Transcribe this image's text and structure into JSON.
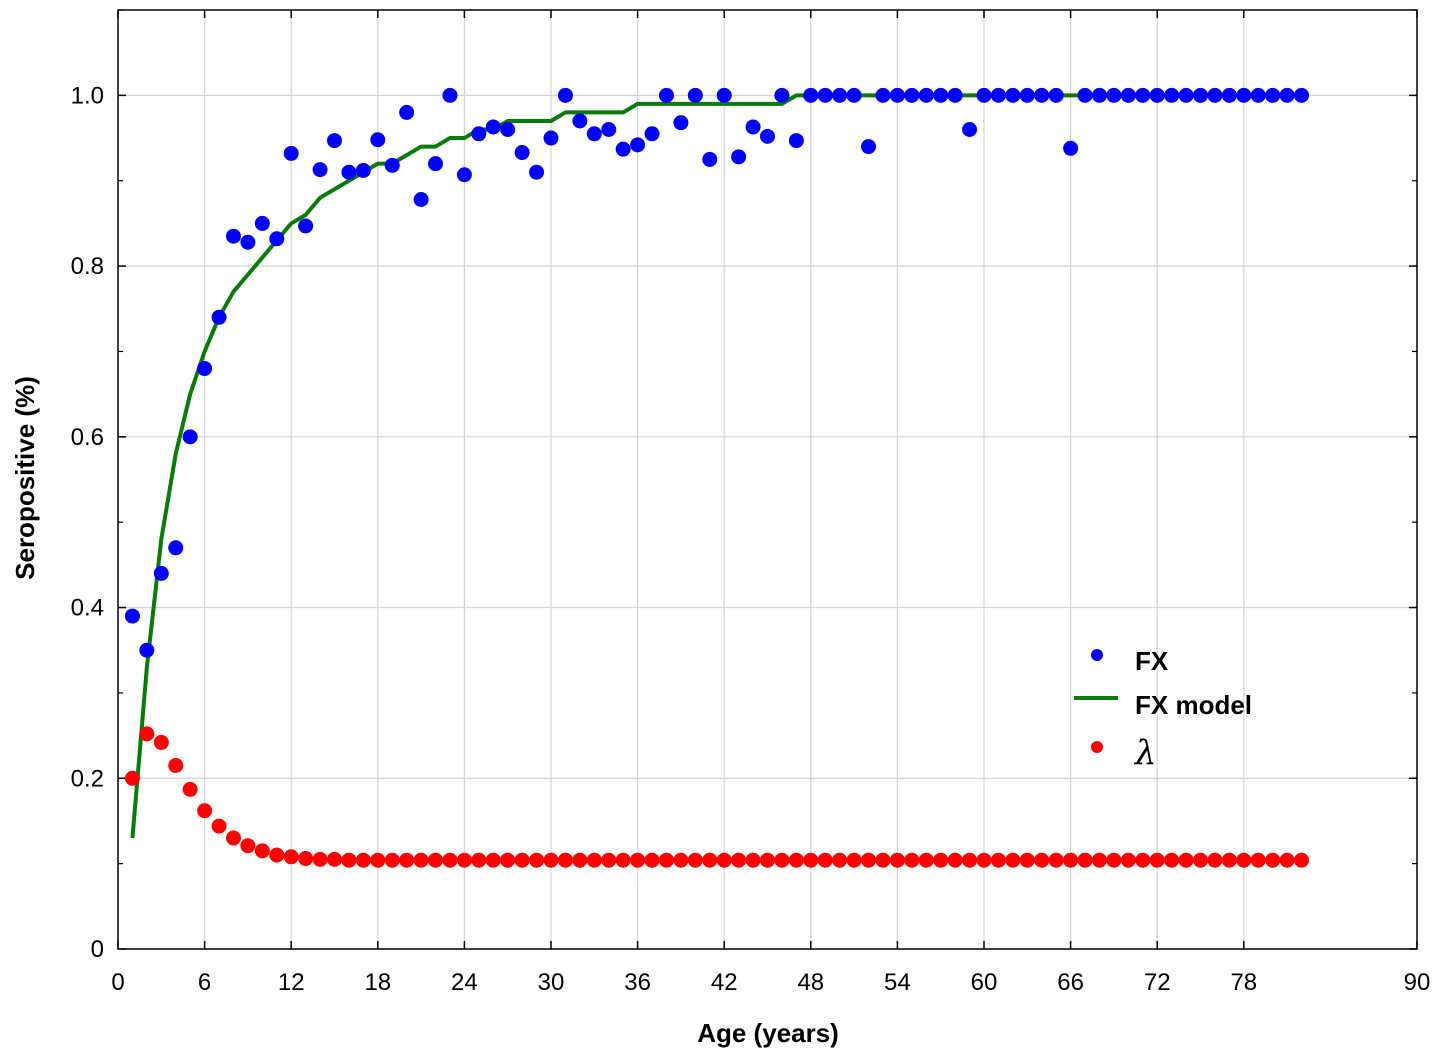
{
  "chart_data": {
    "type": "scatter",
    "title": "",
    "xlabel": "Age (years)",
    "ylabel": "Seropositive (%)",
    "xlim": [
      0,
      90
    ],
    "ylim": [
      0,
      1.1
    ],
    "xticks": [
      0,
      6,
      12,
      18,
      24,
      30,
      36,
      42,
      48,
      54,
      60,
      66,
      72,
      78,
      90
    ],
    "xtick_labels": [
      "0",
      "6",
      "12",
      "18",
      "24",
      "30",
      "36",
      "42",
      "48",
      "54",
      "60",
      "66",
      "72",
      "78",
      "90"
    ],
    "yticks": [
      0,
      0.2,
      0.4,
      0.6,
      0.8,
      1.0
    ],
    "ytick_labels": [
      "0",
      "0.2",
      "0.4",
      "0.6",
      "0.8",
      "1.0"
    ],
    "grid": true,
    "legend_position": "center-right",
    "series": [
      {
        "name": "FX",
        "kind": "scatter",
        "color": "#0000ff",
        "x": [
          1,
          2,
          3,
          4,
          5,
          6,
          7,
          8,
          9,
          10,
          11,
          12,
          13,
          14,
          15,
          16,
          17,
          18,
          19,
          20,
          21,
          22,
          23,
          24,
          25,
          26,
          27,
          28,
          29,
          30,
          31,
          32,
          33,
          34,
          35,
          36,
          37,
          38,
          39,
          40,
          41,
          42,
          43,
          44,
          45,
          46,
          47,
          48,
          49,
          50,
          51,
          52,
          53,
          54,
          55,
          56,
          57,
          58,
          59,
          60,
          61,
          62,
          63,
          64,
          65,
          66,
          67,
          68,
          69,
          70,
          71,
          72,
          73,
          74,
          75,
          76,
          77,
          78,
          79,
          80,
          81,
          82
        ],
        "y": [
          0.39,
          0.35,
          0.44,
          0.47,
          0.6,
          0.68,
          0.74,
          0.835,
          0.828,
          0.85,
          0.832,
          0.932,
          0.847,
          0.913,
          0.947,
          0.91,
          0.912,
          0.948,
          0.918,
          0.98,
          0.878,
          0.92,
          1.0,
          0.907,
          0.955,
          0.963,
          0.96,
          0.933,
          0.91,
          0.95,
          1.0,
          0.97,
          0.955,
          0.96,
          0.937,
          0.942,
          0.955,
          1.0,
          0.968,
          1.0,
          0.925,
          1.0,
          0.928,
          0.963,
          0.952,
          1.0,
          0.947,
          1.0,
          1.0,
          1.0,
          1.0,
          0.94,
          1.0,
          1.0,
          1.0,
          1.0,
          1.0,
          1.0,
          0.96,
          1.0,
          1.0,
          1.0,
          1.0,
          1.0,
          1.0,
          0.938,
          1.0,
          1.0,
          1.0,
          1.0,
          1.0,
          1.0,
          1.0,
          1.0,
          1.0,
          1.0,
          1.0,
          1.0,
          1.0,
          1.0,
          1.0,
          1.0
        ]
      },
      {
        "name": "FX model",
        "kind": "line",
        "color": "#0a7a0a",
        "x": [
          1,
          2,
          3,
          4,
          5,
          6,
          7,
          8,
          9,
          10,
          11,
          12,
          13,
          14,
          15,
          16,
          17,
          18,
          19,
          20,
          21,
          22,
          23,
          24,
          25,
          26,
          27,
          28,
          29,
          30,
          31,
          32,
          33,
          34,
          35,
          36,
          37,
          38,
          39,
          40,
          41,
          42,
          43,
          44,
          45,
          46,
          47,
          48,
          49,
          50,
          51,
          52,
          53,
          54,
          55,
          56,
          57,
          58,
          59,
          60,
          61,
          62,
          63,
          64,
          65,
          66,
          67,
          68,
          69,
          70,
          71,
          72,
          73,
          74,
          75,
          76,
          77,
          78,
          79,
          80,
          81,
          82
        ],
        "y": [
          0.13,
          0.33,
          0.48,
          0.58,
          0.65,
          0.7,
          0.74,
          0.77,
          0.79,
          0.81,
          0.83,
          0.85,
          0.86,
          0.88,
          0.89,
          0.9,
          0.91,
          0.92,
          0.92,
          0.93,
          0.94,
          0.94,
          0.95,
          0.95,
          0.96,
          0.96,
          0.97,
          0.97,
          0.97,
          0.97,
          0.98,
          0.98,
          0.98,
          0.98,
          0.98,
          0.99,
          0.99,
          0.99,
          0.99,
          0.99,
          0.99,
          0.99,
          0.99,
          0.99,
          0.99,
          0.99,
          1.0,
          1.0,
          1.0,
          1.0,
          1.0,
          1.0,
          1.0,
          1.0,
          1.0,
          1.0,
          1.0,
          1.0,
          1.0,
          1.0,
          1.0,
          1.0,
          1.0,
          1.0,
          1.0,
          1.0,
          1.0,
          1.0,
          1.0,
          1.0,
          1.0,
          1.0,
          1.0,
          1.0,
          1.0,
          1.0,
          1.0,
          1.0,
          1.0,
          1.0,
          1.0,
          1.0
        ]
      },
      {
        "name": "λ",
        "kind": "scatter",
        "color": "#ff0000",
        "x": [
          1,
          2,
          3,
          4,
          5,
          6,
          7,
          8,
          9,
          10,
          11,
          12,
          13,
          14,
          15,
          16,
          17,
          18,
          19,
          20,
          21,
          22,
          23,
          24,
          25,
          26,
          27,
          28,
          29,
          30,
          31,
          32,
          33,
          34,
          35,
          36,
          37,
          38,
          39,
          40,
          41,
          42,
          43,
          44,
          45,
          46,
          47,
          48,
          49,
          50,
          51,
          52,
          53,
          54,
          55,
          56,
          57,
          58,
          59,
          60,
          61,
          62,
          63,
          64,
          65,
          66,
          67,
          68,
          69,
          70,
          71,
          72,
          73,
          74,
          75,
          76,
          77,
          78,
          79,
          80,
          81,
          82
        ],
        "y": [
          0.2,
          0.252,
          0.242,
          0.215,
          0.187,
          0.162,
          0.144,
          0.13,
          0.121,
          0.115,
          0.11,
          0.108,
          0.106,
          0.105,
          0.105,
          0.104,
          0.104,
          0.104,
          0.104,
          0.104,
          0.104,
          0.104,
          0.104,
          0.104,
          0.104,
          0.104,
          0.104,
          0.104,
          0.104,
          0.104,
          0.104,
          0.104,
          0.104,
          0.104,
          0.104,
          0.104,
          0.104,
          0.104,
          0.104,
          0.104,
          0.104,
          0.104,
          0.104,
          0.104,
          0.104,
          0.104,
          0.104,
          0.104,
          0.104,
          0.104,
          0.104,
          0.104,
          0.104,
          0.104,
          0.104,
          0.104,
          0.104,
          0.104,
          0.104,
          0.104,
          0.104,
          0.104,
          0.104,
          0.104,
          0.104,
          0.104,
          0.104,
          0.104,
          0.104,
          0.104,
          0.104,
          0.104,
          0.104,
          0.104,
          0.104,
          0.104,
          0.104,
          0.104,
          0.104,
          0.104,
          0.104,
          0.104
        ]
      }
    ]
  }
}
